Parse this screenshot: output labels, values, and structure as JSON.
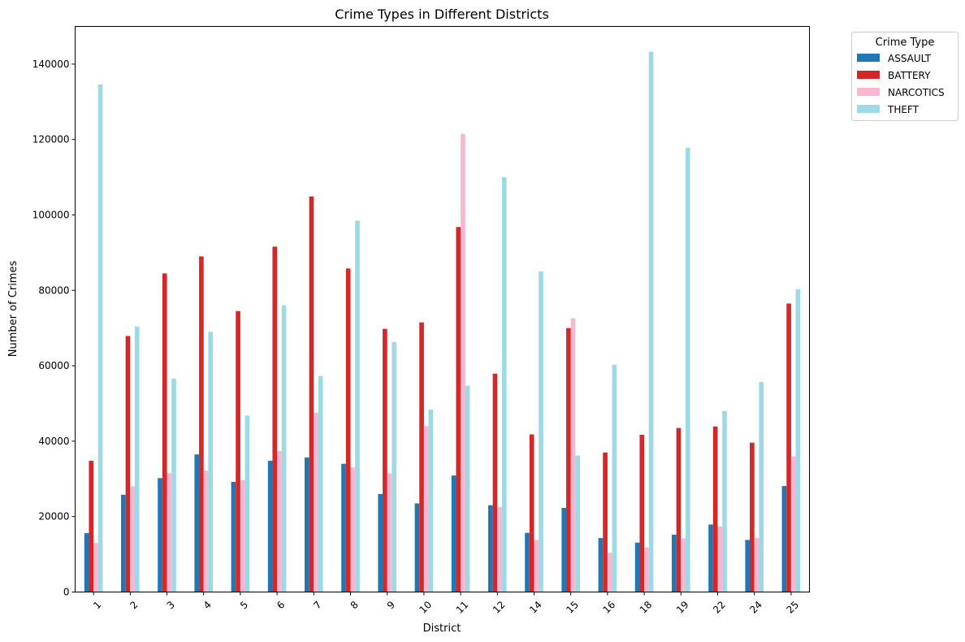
{
  "chart_data": {
    "type": "bar",
    "title": "Crime Types in Different Districts",
    "xlabel": "District",
    "ylabel": "Number of Crimes",
    "ylim": [
      0,
      150000
    ],
    "yticks": [
      0,
      20000,
      40000,
      60000,
      80000,
      100000,
      120000,
      140000
    ],
    "grid": false,
    "legend_title": "Crime Type",
    "legend_position": "outside-top-right",
    "categories": [
      "1",
      "2",
      "3",
      "4",
      "5",
      "6",
      "7",
      "8",
      "9",
      "10",
      "11",
      "12",
      "14",
      "15",
      "16",
      "18",
      "19",
      "22",
      "24",
      "25"
    ],
    "series": [
      {
        "name": "ASSAULT",
        "color": "#1f77b4",
        "values": [
          15600,
          25800,
          30200,
          36500,
          29200,
          34800,
          35700,
          34000,
          26000,
          23500,
          30900,
          23000,
          15700,
          22300,
          14300,
          13100,
          15200,
          17900,
          13800,
          28100
        ]
      },
      {
        "name": "BATTERY",
        "color": "#d62728",
        "values": [
          34800,
          67900,
          84500,
          89000,
          74500,
          91600,
          104900,
          85800,
          69800,
          71500,
          96800,
          57900,
          41800,
          70000,
          37000,
          41700,
          43500,
          43900,
          39600,
          76500
        ]
      },
      {
        "name": "NARCOTICS",
        "color": "#f7b6d2",
        "values": [
          13000,
          28000,
          31500,
          32200,
          29700,
          37400,
          47500,
          33000,
          31400,
          44000,
          121500,
          22500,
          13800,
          72600,
          10400,
          11800,
          14200,
          17400,
          14300,
          36000
        ]
      },
      {
        "name": "THEFT",
        "color": "#9edae5",
        "values": [
          134600,
          70400,
          56600,
          69000,
          46800,
          76000,
          57300,
          98500,
          66300,
          48400,
          54700,
          110000,
          85000,
          36200,
          60300,
          143300,
          117800,
          48000,
          55700,
          80300
        ]
      }
    ]
  }
}
